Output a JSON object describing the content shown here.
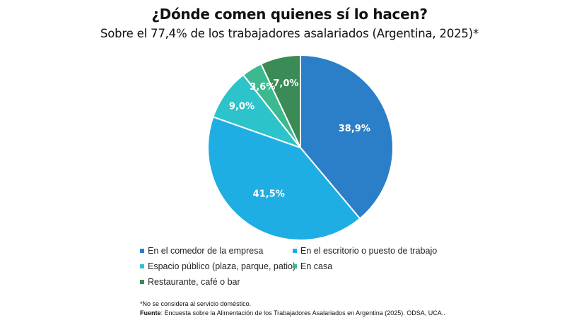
{
  "chart_data": {
    "type": "pie",
    "title": "¿Dónde comen quienes sí lo hacen?",
    "subtitle": "Sobre el 77,4% de los trabajadores asalariados (Argentina, 2025)*",
    "categories": [
      "En el comedor de la empresa",
      "En el escritorio o puesto de trabajo",
      "Espacio público (plaza, parque, patio)",
      "En casa",
      "Restaurante, café o bar"
    ],
    "values": [
      38.9,
      41.5,
      9.0,
      3.6,
      7.0
    ],
    "data_labels": [
      "38,9%",
      "41,5%",
      "9,0%",
      "3,6%",
      "7,0%"
    ],
    "colors": [
      "#2A7FC8",
      "#1EAEE4",
      "#2CC3CA",
      "#3DB98F",
      "#3A8B56"
    ],
    "start_angle": "12 o'clock, clockwise",
    "legend_position": "bottom"
  },
  "notes": {
    "footnote": "*No se considera al servicio doméstico.",
    "source_label": "Fuente",
    "source_text": ": Encuesta sobre la Alimentación de los Trabajadores Asalariados en Argentina (2025). ODSA, UCA.."
  }
}
